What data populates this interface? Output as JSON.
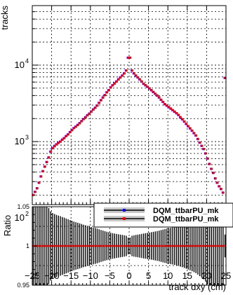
{
  "chart_data": [
    {
      "type": "scatter",
      "ylabel": "tracks",
      "yscale": "log",
      "xlim": [
        -25,
        25
      ],
      "ylim": [
        150,
        60000
      ],
      "yticks": [
        {
          "value": 100,
          "label": "10",
          "exp": "2"
        },
        {
          "value": 1000,
          "label": "10",
          "exp": "3"
        },
        {
          "value": 10000,
          "label": "10",
          "exp": "4"
        }
      ],
      "grid": true,
      "series": [
        {
          "name": "DQM_ttbarPU_mk",
          "color": "#0000ff",
          "x": [
            -24.75,
            -24.25,
            -23.75,
            -23.25,
            -22.75,
            -22.25,
            -21.75,
            -21.25,
            -20.75,
            -20.25,
            -19.75,
            -19.25,
            -18.75,
            -18.25,
            -17.75,
            -17.25,
            -16.75,
            -16.25,
            -15.75,
            -15.25,
            -14.75,
            -14.25,
            -13.75,
            -13.25,
            -12.75,
            -12.25,
            -11.75,
            -11.25,
            -10.75,
            -10.25,
            -9.75,
            -9.25,
            -8.75,
            -8.25,
            -7.75,
            -7.25,
            -6.75,
            -6.25,
            -5.75,
            -5.25,
            -4.75,
            -4.25,
            -3.75,
            -3.25,
            -2.75,
            -2.25,
            -1.75,
            -1.25,
            -0.75,
            -0.25,
            0.25,
            0.75,
            1.25,
            1.75,
            2.25,
            2.75,
            3.25,
            3.75,
            4.25,
            4.75,
            5.25,
            5.75,
            6.25,
            6.75,
            7.25,
            7.75,
            8.25,
            8.75,
            9.25,
            9.75,
            10.25,
            10.75,
            11.25,
            11.75,
            12.25,
            12.75,
            13.25,
            13.75,
            14.25,
            14.75,
            15.25,
            15.75,
            16.25,
            16.75,
            17.25,
            17.75,
            18.25,
            18.75,
            19.25,
            19.75,
            20.25,
            20.75,
            21.25,
            21.75,
            22.25,
            22.75,
            23.25,
            23.75,
            24.25,
            24.75
          ],
          "values": [
            200,
            220,
            245,
            290,
            350,
            410,
            470,
            540,
            620,
            740,
            820,
            870,
            920,
            960,
            1000,
            1060,
            1110,
            1180,
            1240,
            1330,
            1410,
            1500,
            1570,
            1650,
            1740,
            1850,
            1970,
            2080,
            2210,
            2320,
            2470,
            2630,
            2770,
            2960,
            3210,
            3480,
            3770,
            4060,
            4400,
            4700,
            5100,
            5450,
            5750,
            6100,
            6500,
            6900,
            7300,
            7800,
            8500,
            12500,
            12500,
            8500,
            7800,
            7300,
            6900,
            6500,
            6100,
            5700,
            5450,
            5200,
            4950,
            4700,
            4450,
            4220,
            4000,
            3780,
            3520,
            3300,
            3080,
            2950,
            2820,
            2700,
            2580,
            2460,
            2350,
            2230,
            2080,
            1960,
            1830,
            1700,
            1590,
            1490,
            1390,
            1290,
            1200,
            1080,
            970,
            880,
            800,
            700,
            600,
            510,
            440,
            390,
            330,
            290,
            260,
            240,
            215,
            6800
          ]
        },
        {
          "name": "DQM_ttbarPU_mk",
          "color": "#ff0000",
          "x": [
            -24.75,
            -24.25,
            -23.75,
            -23.25,
            -22.75,
            -22.25,
            -21.75,
            -21.25,
            -20.75,
            -20.25,
            -19.75,
            -19.25,
            -18.75,
            -18.25,
            -17.75,
            -17.25,
            -16.75,
            -16.25,
            -15.75,
            -15.25,
            -14.75,
            -14.25,
            -13.75,
            -13.25,
            -12.75,
            -12.25,
            -11.75,
            -11.25,
            -10.75,
            -10.25,
            -9.75,
            -9.25,
            -8.75,
            -8.25,
            -7.75,
            -7.25,
            -6.75,
            -6.25,
            -5.75,
            -5.25,
            -4.75,
            -4.25,
            -3.75,
            -3.25,
            -2.75,
            -2.25,
            -1.75,
            -1.25,
            -0.75,
            -0.25,
            0.25,
            0.75,
            1.25,
            1.75,
            2.25,
            2.75,
            3.25,
            3.75,
            4.25,
            4.75,
            5.25,
            5.75,
            6.25,
            6.75,
            7.25,
            7.75,
            8.25,
            8.75,
            9.25,
            9.75,
            10.25,
            10.75,
            11.25,
            11.75,
            12.25,
            12.75,
            13.25,
            13.75,
            14.25,
            14.75,
            15.25,
            15.75,
            16.25,
            16.75,
            17.25,
            17.75,
            18.25,
            18.75,
            19.25,
            19.75,
            20.25,
            20.75,
            21.25,
            21.75,
            22.25,
            22.75,
            23.25,
            23.75,
            24.25,
            24.75
          ],
          "values": [
            200,
            220,
            245,
            290,
            350,
            410,
            470,
            540,
            620,
            740,
            820,
            870,
            920,
            960,
            1000,
            1060,
            1110,
            1180,
            1240,
            1330,
            1410,
            1500,
            1570,
            1650,
            1740,
            1850,
            1970,
            2080,
            2210,
            2320,
            2470,
            2630,
            2770,
            2960,
            3210,
            3480,
            3770,
            4060,
            4400,
            4700,
            5100,
            5450,
            5750,
            6100,
            6500,
            6900,
            7300,
            7800,
            8500,
            12500,
            12500,
            8500,
            7800,
            7300,
            6900,
            6500,
            6100,
            5700,
            5450,
            5200,
            4950,
            4700,
            4450,
            4220,
            4000,
            3780,
            3520,
            3300,
            3080,
            2950,
            2820,
            2700,
            2580,
            2460,
            2350,
            2230,
            2080,
            1960,
            1830,
            1700,
            1590,
            1490,
            1390,
            1290,
            1200,
            1080,
            970,
            880,
            800,
            700,
            600,
            510,
            440,
            390,
            330,
            290,
            260,
            240,
            215,
            6800
          ]
        }
      ]
    },
    {
      "type": "scatter",
      "xlabel": "track dxy (cm)",
      "ylabel": "Ratio",
      "xlim": [
        -25,
        25
      ],
      "ylim": [
        0.95,
        1.05
      ],
      "xticks": [
        "−25",
        "−20",
        "−15",
        "−10",
        "−5",
        "0",
        "5",
        "10",
        "15",
        "20",
        "25"
      ],
      "yticks": [
        "0.95",
        "1",
        "1.05"
      ],
      "grid": true,
      "ratio_value": 1,
      "legend": {
        "placement": "top-right",
        "entries": [
          {
            "label": "DQM_ttbarPU_mk",
            "color": "#0000ff"
          },
          {
            "label": "DQM_ttbarPU_mk",
            "color": "#ff0000"
          }
        ]
      }
    }
  ]
}
